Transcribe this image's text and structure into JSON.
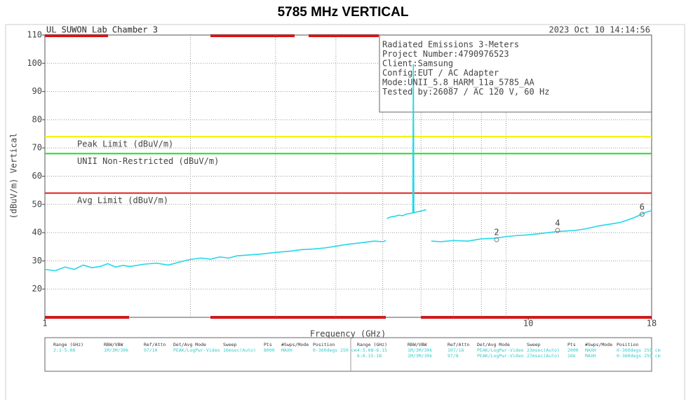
{
  "chart_data": {
    "type": "line",
    "title": "5785 MHz VERTICAL",
    "header_left": "UL SUWON Lab Chamber 3",
    "header_right": "2023 Oct 10    14:14:56",
    "info": [
      "Radiated Emissions 3-Meters",
      "Project Number:4790976523",
      "Client:Samsung",
      "Config:EUT / AC Adapter",
      "Mode:UNII_5.8_HARM_11a_5785_AA",
      "Tested by:26087 / AC 120 V, 60 Hz"
    ],
    "xlabel": "Frequency (GHz)",
    "ylabel": "(dBuV/m) Vertical",
    "xlog": true,
    "xlim": [
      1,
      18
    ],
    "xticks": [
      1,
      10,
      18
    ],
    "xminor": [
      2,
      3,
      4,
      5,
      6,
      7,
      8,
      9
    ],
    "ylim": [
      10,
      110
    ],
    "yticks": [
      20,
      30,
      40,
      50,
      60,
      70,
      80,
      90,
      100,
      110
    ],
    "grid": true,
    "limits": [
      {
        "name": "Peak Limit (dBuV/m)",
        "value": 74,
        "color": "#f2f200"
      },
      {
        "name": "UNII Non-Restricted (dBuV/m)",
        "value": 68,
        "color": "#22dd22"
      },
      {
        "name": "Avg Limit (dBuV/m)",
        "value": 54,
        "color": "#e02020"
      }
    ],
    "series": [
      {
        "color": "#22d8e8",
        "x": [
          1,
          1.05,
          1.1,
          1.15,
          1.2,
          1.25,
          1.3,
          1.35,
          1.4,
          1.45,
          1.5,
          1.6,
          1.7,
          1.8,
          1.9,
          2.0,
          2.1,
          2.2,
          2.3,
          2.4,
          2.5,
          2.6,
          2.8,
          3.0,
          3.2,
          3.4,
          3.6,
          3.8,
          4.0,
          4.2,
          4.4,
          4.6,
          4.8,
          5.0,
          5.08,
          5.09,
          5.1,
          5.2,
          5.3,
          5.4,
          5.5,
          5.6,
          5.7,
          5.77,
          5.785,
          5.8,
          5.9,
          6.0,
          6.1,
          6.15,
          6.2,
          6.3,
          6.6,
          7,
          7.5,
          8,
          8.5,
          9,
          9.5,
          10,
          10.5,
          11,
          11.5,
          12,
          12.5,
          13,
          13.5,
          14,
          14.5,
          15,
          15.5,
          16,
          16.5,
          17,
          17.5,
          18
        ],
        "values": [
          27,
          26.5,
          27.8,
          27,
          28.5,
          27.6,
          28,
          29,
          27.8,
          28.4,
          28,
          28.8,
          29.2,
          28.5,
          29.6,
          30.5,
          31,
          30.6,
          31.4,
          31,
          31.8,
          32,
          32.4,
          33,
          33.4,
          34,
          34.2,
          34.6,
          35.2,
          35.8,
          36.2,
          36.6,
          37,
          36.8,
          37.2,
          null,
          45,
          45.6,
          45.8,
          46.2,
          46,
          46.6,
          46.8,
          47,
          99.5,
          47,
          47.4,
          47.6,
          48,
          48,
          null,
          37,
          36.8,
          37.2,
          37,
          37.8,
          38,
          38.6,
          39,
          39.2,
          39.6,
          40,
          40.4,
          40.6,
          40.8,
          41.2,
          41.8,
          42.4,
          42.8,
          43.2,
          43.6,
          44.4,
          45.2,
          46.2,
          47.2,
          47.8
        ]
      }
    ],
    "markers": [
      {
        "label": "2",
        "x": 8.6,
        "value": 37.5
      },
      {
        "label": "4",
        "x": 11.5,
        "value": 40.8
      },
      {
        "label": "6",
        "x": 17.2,
        "value": 46.5
      }
    ],
    "settings_table": {
      "columns": [
        "Range (GHz)",
        "RBW/VBW",
        "Ref/Attn",
        "Det/Avg Mode",
        "Sweep",
        "Pts",
        "#Swps/Mode",
        "Position"
      ],
      "left_rows": [
        [
          "2:1-5.08",
          "1M/3M/30k",
          "97/10",
          "PEAK/LogPwr-Video",
          "16msec(Auto)",
          "8000",
          "MAXH",
          "0-360degs 250 cm"
        ]
      ],
      "right_rows": [
        [
          "4:5.08-6.15",
          "1M/3M/30k",
          "107/16",
          "PEAK/LogPwr-Video",
          "23msec(Auto)",
          "2000",
          "MAXH",
          "0-360degs 250 cm"
        ],
        [
          "6:6.15-18",
          "1M/3M/30k",
          "97/8",
          "PEAK/LogPwr-Video",
          "27msec(Auto)",
          "16k",
          "MAXH",
          "0-360degs 250 cm"
        ]
      ]
    }
  }
}
